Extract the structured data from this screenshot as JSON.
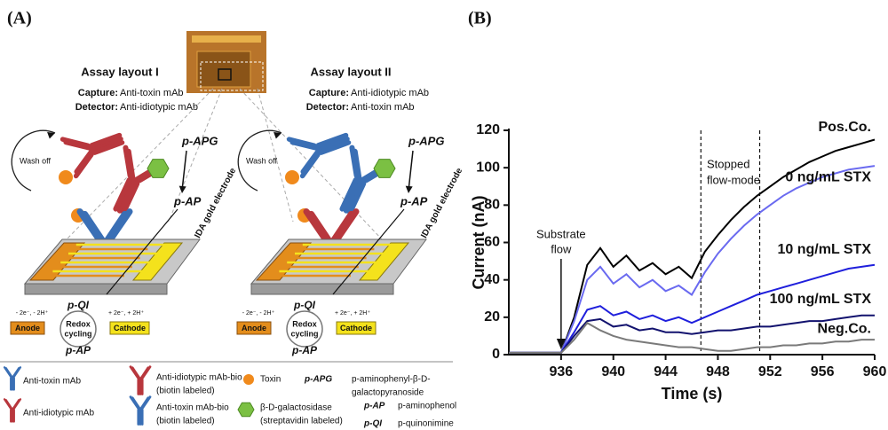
{
  "panel_a": {
    "label": "(A)",
    "layouts": [
      {
        "title": "Assay layout I",
        "capture_label": "Capture:",
        "capture": "Anti-toxin mAb",
        "detector_label": "Detector:",
        "detector": "Anti-idiotypic mAb",
        "wash": "Wash off",
        "substrate": "p-APG",
        "product": "p-AP",
        "electrode": "IDA gold electrode",
        "oxidized": "p-QI",
        "cycle": [
          "Redox",
          "cycling"
        ],
        "anode": "Anode",
        "cathode": "Cathode",
        "anode_reaction": "- 2e⁻, - 2H⁺",
        "cathode_reaction": "+ 2e⁻, + 2H⁺",
        "reduced": "p-AP"
      },
      {
        "title": "Assay layout II",
        "capture_label": "Capture:",
        "capture": "Anti-idiotypic mAb",
        "detector_label": "Detector:",
        "detector": "Anti-toxin mAb",
        "wash": "Wash off",
        "substrate": "p-APG",
        "product": "p-AP",
        "electrode": "IDA gold electrode",
        "oxidized": "p-QI",
        "cycle": [
          "Redox",
          "cycling"
        ],
        "anode": "Anode",
        "cathode": "Cathode",
        "anode_reaction": "- 2e⁻, - 2H⁺",
        "cathode_reaction": "+ 2e⁻, + 2H⁺",
        "reduced": "p-AP"
      }
    ],
    "legend": [
      {
        "text": [
          "Anti-toxin mAb"
        ]
      },
      {
        "text": [
          "Anti-idiotypic mAb-bio",
          "(biotin labeled)"
        ]
      },
      {
        "text": [
          "Toxin"
        ]
      },
      {
        "abbr": "p-APG",
        "text": [
          "p-aminophenyl-β-D-",
          "galactopyranoside"
        ]
      },
      {
        "text": [
          "Anti-idiotypic mAb"
        ]
      },
      {
        "text": [
          "Anti-toxin mAb-bio",
          "(biotin labeled)"
        ]
      },
      {
        "text": [
          "β-D-galactosidase",
          "(streptavidin labeled)"
        ]
      },
      {
        "abbr": "p-AP",
        "text": [
          "p-aminophenol"
        ]
      },
      {
        "abbr": "p-QI",
        "text": [
          "p-quinonimine"
        ]
      }
    ]
  },
  "chart_data": {
    "type": "line",
    "panel_label": "(B)",
    "x_label": "Time (s)",
    "y_label": "Current (nA)",
    "xlim": [
      932,
      960
    ],
    "ylim": [
      0,
      120
    ],
    "xticks": [
      936,
      940,
      944,
      948,
      952,
      956,
      960
    ],
    "yticks": [
      0,
      20,
      40,
      60,
      80,
      100,
      120
    ],
    "x": [
      932,
      933,
      934,
      935,
      936,
      937,
      938,
      939,
      940,
      941,
      942,
      943,
      944,
      945,
      946,
      947,
      948,
      949,
      950,
      951,
      952,
      953,
      954,
      955,
      956,
      957,
      958,
      959,
      960
    ],
    "series": [
      {
        "name": "Pos.Co.",
        "color": "#000000",
        "values": [
          1,
          1,
          1,
          1,
          1,
          20,
          48,
          57,
          47,
          53,
          45,
          49,
          43,
          47,
          41,
          55,
          64,
          72,
          79,
          85,
          90,
          95,
          99,
          103,
          106,
          109,
          111,
          113,
          115
        ]
      },
      {
        "name": "0 ng/mL STX",
        "color": "#6a6af0",
        "values": [
          1,
          1,
          1,
          1,
          1,
          18,
          40,
          47,
          38,
          43,
          36,
          40,
          34,
          37,
          32,
          44,
          54,
          62,
          69,
          75,
          80,
          85,
          89,
          92,
          95,
          97,
          99,
          100,
          101
        ]
      },
      {
        "name": "10 ng/mL STX",
        "color": "#1f1fdc",
        "values": [
          1,
          1,
          1,
          1,
          1,
          12,
          24,
          26,
          21,
          23,
          19,
          21,
          18,
          20,
          17,
          20,
          23,
          26,
          29,
          32,
          34,
          36,
          38,
          40,
          42,
          44,
          46,
          47,
          48
        ]
      },
      {
        "name": "100 ng/mL STX",
        "color": "#12126e",
        "values": [
          1,
          1,
          1,
          1,
          1,
          10,
          18,
          19,
          15,
          16,
          13,
          14,
          12,
          12,
          11,
          12,
          13,
          13,
          14,
          15,
          15,
          16,
          17,
          18,
          18,
          19,
          20,
          21,
          21
        ]
      },
      {
        "name": "Neg.Co.",
        "color": "#7a7a7a",
        "values": [
          1,
          1,
          1,
          1,
          1,
          8,
          17,
          13,
          10,
          8,
          7,
          6,
          5,
          4,
          4,
          3,
          2,
          2,
          3,
          4,
          4,
          5,
          5,
          6,
          6,
          7,
          7,
          8,
          8
        ]
      }
    ],
    "vlines": [
      946.7,
      951.2
    ],
    "annotations": [
      {
        "text": [
          "Substrate",
          "flow"
        ],
        "x": 936
      },
      {
        "text": [
          "Stopped",
          "flow-mode"
        ]
      }
    ]
  }
}
